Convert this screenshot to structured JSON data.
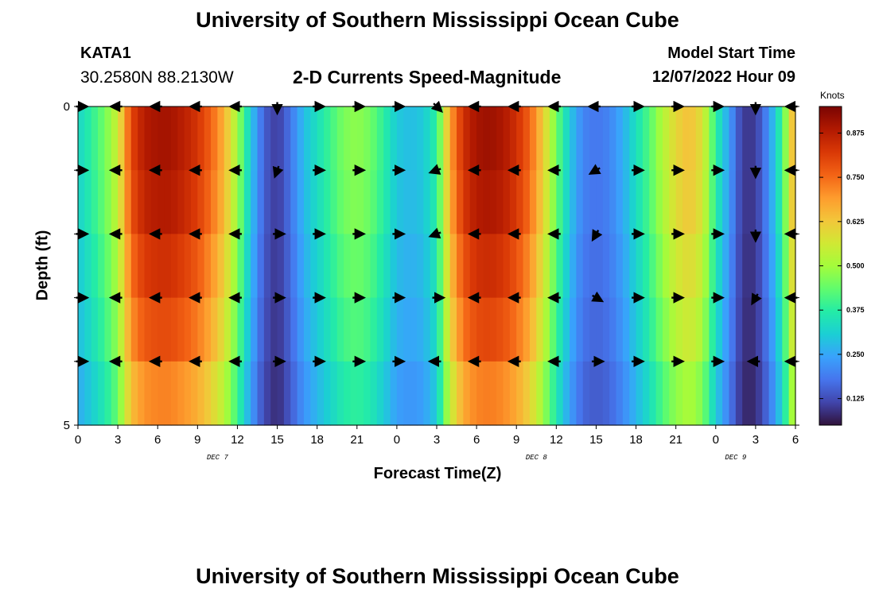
{
  "header": {
    "title": "University of Southern Mississippi Ocean Cube",
    "station": "KATA1",
    "coordinates": "30.2580N  88.2130W",
    "plot_title": "2-D Currents Speed-Magnitude",
    "model_start_label": "Model Start Time",
    "model_start_value": "12/07/2022 Hour 09"
  },
  "footer": {
    "title": "University of Southern Mississippi Ocean Cube"
  },
  "chart_data": {
    "type": "heatmap",
    "title": "2-D Currents Speed-Magnitude",
    "xlabel": "Forecast Time(Z)",
    "ylabel": "Depth (ft)",
    "x_tick_labels": [
      "0",
      "3",
      "6",
      "9",
      "12",
      "15",
      "18",
      "21",
      "0",
      "3",
      "6",
      "9",
      "12",
      "15",
      "18",
      "21",
      "0",
      "3",
      "6"
    ],
    "x_tick_hours": [
      0,
      3,
      6,
      9,
      12,
      15,
      18,
      21,
      24,
      27,
      30,
      33,
      36,
      39,
      42,
      45,
      48,
      51,
      54
    ],
    "date_labels": [
      {
        "text": "DEC 7",
        "hour": 10.5
      },
      {
        "text": "DEC 8",
        "hour": 34.5
      },
      {
        "text": "DEC 9",
        "hour": 49.5
      }
    ],
    "xlim": [
      0,
      54
    ],
    "y_tick_labels": [
      "0",
      "5"
    ],
    "ylim": [
      0,
      5
    ],
    "layers": 5,
    "colorbar": {
      "title": "Knots",
      "range": [
        0.05,
        0.95
      ],
      "tick_values": [
        0.125,
        0.25,
        0.375,
        0.5,
        0.625,
        0.75,
        0.875
      ],
      "tick_labels": [
        "0.125",
        "0.250",
        "0.375",
        "0.500",
        "0.625",
        "0.750",
        "0.875"
      ],
      "colormap": [
        "#30123b",
        "#4145ab",
        "#4675ed",
        "#39a2fc",
        "#1bcfd4",
        "#24eca6",
        "#61fc6c",
        "#a4fc3b",
        "#d1e834",
        "#f3c63a",
        "#fe9b2d",
        "#f36315",
        "#d93806",
        "#b11901",
        "#7a0402"
      ]
    },
    "speed_profile_hours": [
      0,
      1,
      2,
      3,
      4,
      5,
      6,
      7,
      8,
      9,
      10,
      11,
      12,
      13,
      14,
      15,
      16,
      17,
      18,
      19,
      20,
      21,
      22,
      23,
      24,
      25,
      26,
      27,
      28,
      29,
      30,
      31,
      32,
      33,
      34,
      35,
      36,
      37,
      38,
      39,
      40,
      41,
      42,
      43,
      44,
      45,
      46,
      47,
      48,
      49,
      50,
      51,
      52,
      53,
      54
    ],
    "speed_profile_knots": [
      0.32,
      0.38,
      0.45,
      0.55,
      0.8,
      0.88,
      0.9,
      0.9,
      0.87,
      0.83,
      0.76,
      0.66,
      0.5,
      0.3,
      0.15,
      0.1,
      0.18,
      0.28,
      0.34,
      0.4,
      0.46,
      0.48,
      0.45,
      0.38,
      0.3,
      0.28,
      0.3,
      0.38,
      0.68,
      0.84,
      0.9,
      0.91,
      0.89,
      0.84,
      0.76,
      0.62,
      0.45,
      0.3,
      0.2,
      0.18,
      0.2,
      0.26,
      0.34,
      0.42,
      0.52,
      0.6,
      0.64,
      0.58,
      0.38,
      0.24,
      0.1,
      0.1,
      0.22,
      0.4,
      0.7
    ],
    "layer_factors": [
      1.0,
      0.98,
      0.93,
      0.88,
      0.8
    ],
    "direction_hours": [
      0,
      3,
      6,
      9,
      12,
      15,
      18,
      21,
      24,
      27,
      30,
      33,
      36,
      39,
      42,
      45,
      48,
      51,
      54
    ],
    "directions_deg": [
      [
        0,
        180,
        180,
        180,
        180,
        270,
        0,
        0,
        0,
        315,
        180,
        180,
        180,
        180,
        0,
        0,
        0,
        270,
        180
      ],
      [
        0,
        180,
        180,
        180,
        180,
        250,
        0,
        0,
        0,
        200,
        180,
        180,
        180,
        210,
        0,
        0,
        0,
        270,
        180
      ],
      [
        0,
        180,
        180,
        180,
        180,
        0,
        0,
        0,
        0,
        200,
        180,
        180,
        180,
        240,
        0,
        0,
        0,
        270,
        180
      ],
      [
        0,
        180,
        180,
        180,
        180,
        0,
        0,
        0,
        0,
        0,
        180,
        180,
        180,
        330,
        0,
        0,
        0,
        240,
        180
      ],
      [
        0,
        180,
        180,
        180,
        180,
        0,
        0,
        0,
        0,
        180,
        180,
        180,
        180,
        0,
        0,
        0,
        0,
        180,
        180
      ]
    ]
  }
}
